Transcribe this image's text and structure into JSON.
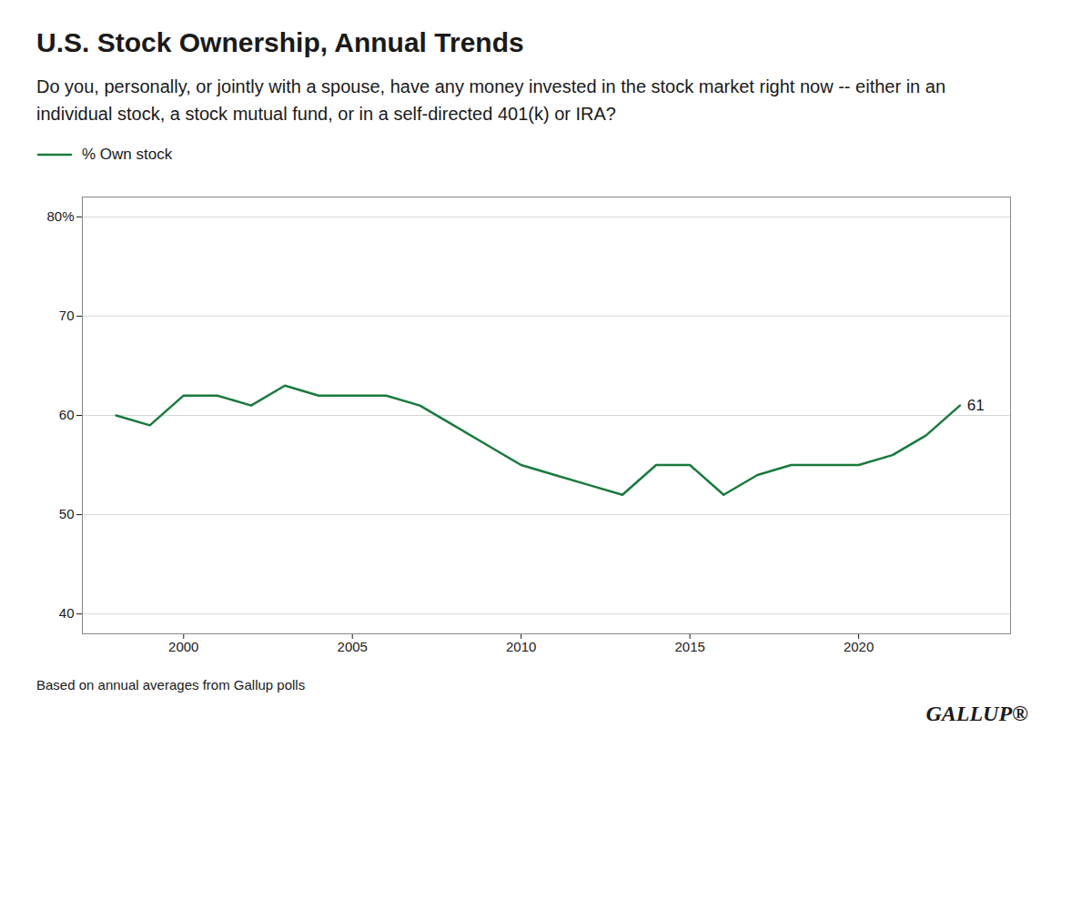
{
  "chart_data": {
    "type": "line",
    "title": "U.S. Stock Ownership, Annual Trends",
    "subtitle": "Do you, personally, or jointly with a spouse, have any money invested in the stock market right now -- either in an individual stock, a stock mutual fund, or in a self-directed 401(k) or IRA?",
    "caption": "Based on annual averages from Gallup polls",
    "brand": "GALLUP®",
    "x": [
      1998,
      1999,
      2000,
      2001,
      2002,
      2003,
      2004,
      2005,
      2006,
      2007,
      2008,
      2009,
      2010,
      2011,
      2012,
      2013,
      2014,
      2015,
      2016,
      2017,
      2018,
      2019,
      2020,
      2021,
      2022,
      2023
    ],
    "series": [
      {
        "name": "% Own stock",
        "color": "#1a7a3c",
        "values": [
          60,
          59,
          62,
          62,
          61,
          63,
          62,
          62,
          62,
          61,
          59,
          57,
          55,
          54,
          53,
          52,
          55,
          55,
          52,
          54,
          55,
          55,
          55,
          56,
          58,
          61
        ]
      }
    ],
    "xlim": [
      1997,
      2024.5
    ],
    "xticks": [
      2000,
      2005,
      2010,
      2015,
      2020
    ],
    "ylim": [
      38,
      82
    ],
    "yticks": [
      40,
      50,
      60,
      70,
      {
        "value": 80,
        "label": "80%"
      }
    ],
    "annotations": [
      {
        "text": "61",
        "x": 2023,
        "y": 61
      }
    ],
    "grid": true,
    "legend": "top"
  }
}
